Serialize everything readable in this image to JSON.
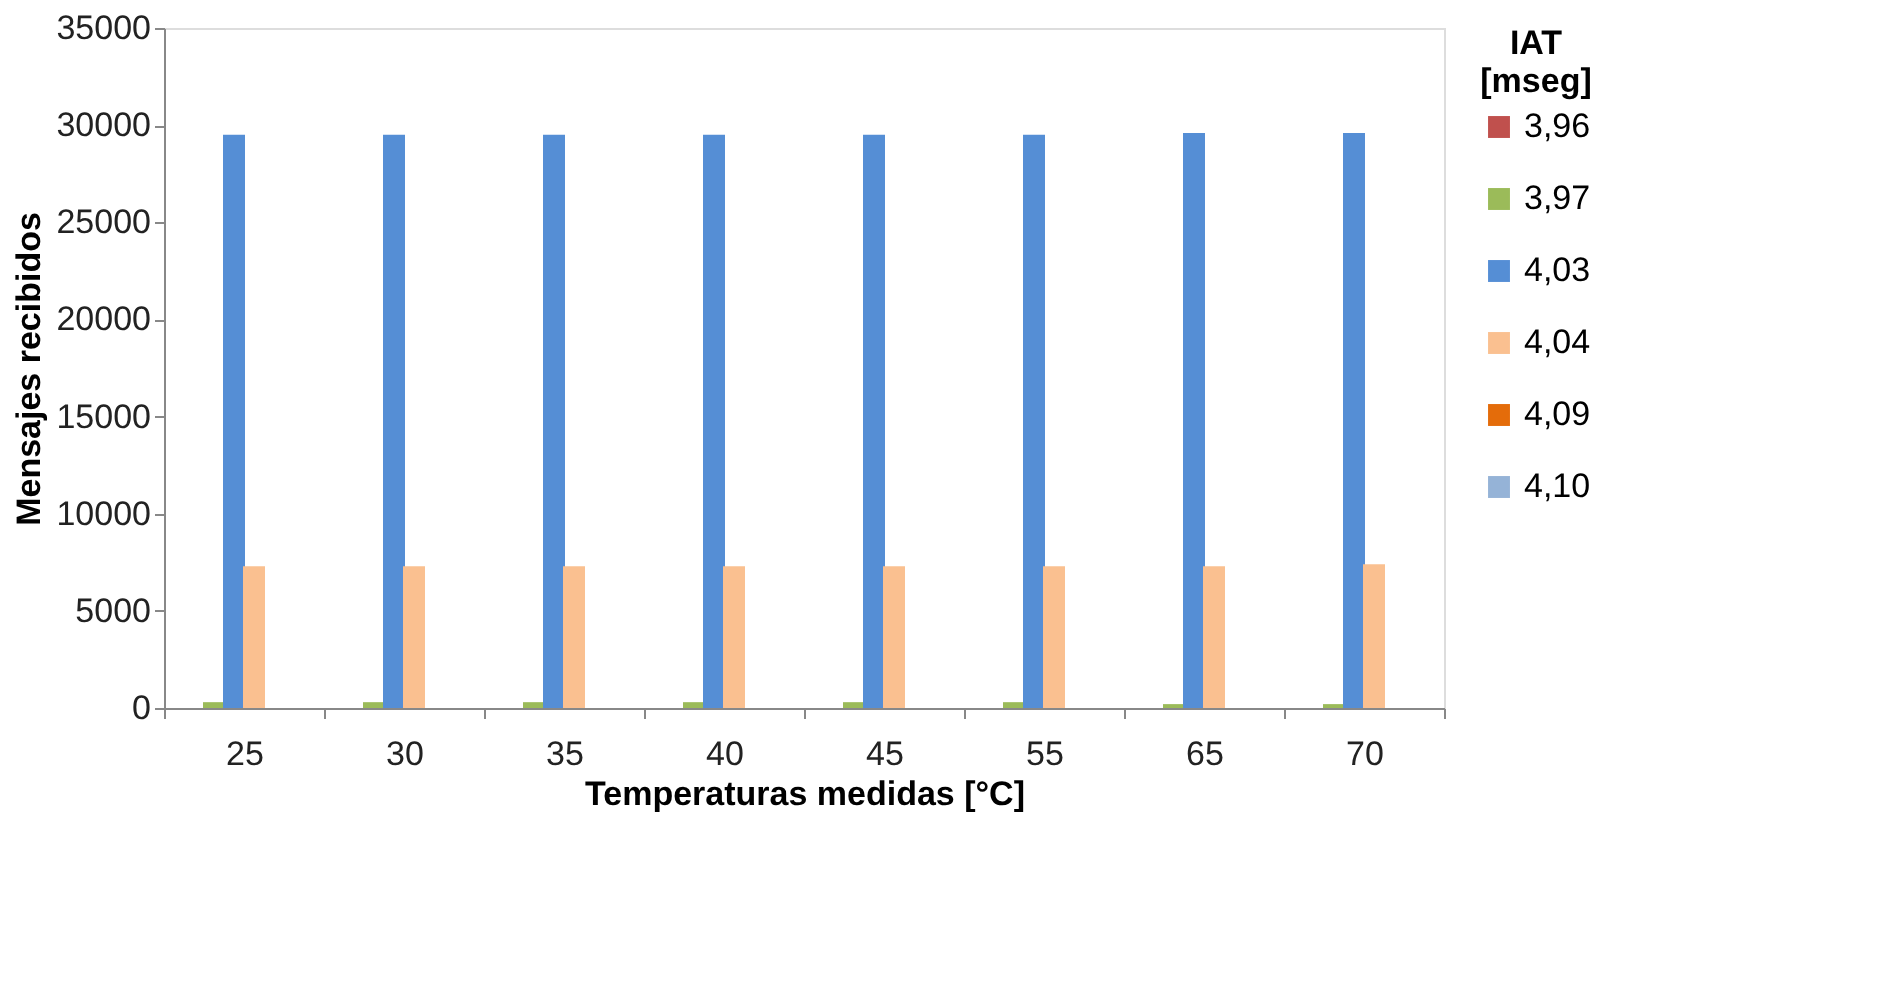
{
  "chart_data": {
    "type": "bar",
    "xlabel": "Temperaturas medidas [°C]",
    "ylabel": "Mensajes recibidos",
    "legend_title": "IAT [mseg]",
    "categories": [
      "25",
      "30",
      "35",
      "40",
      "45",
      "55",
      "65",
      "70"
    ],
    "series": [
      {
        "name": "3,96",
        "color": "#c0504d",
        "values": [
          0,
          0,
          0,
          0,
          0,
          0,
          0,
          0
        ]
      },
      {
        "name": "3,97",
        "color": "#9bbb59",
        "values": [
          300,
          300,
          300,
          300,
          300,
          300,
          200,
          200
        ]
      },
      {
        "name": "4,03",
        "color": "#558ed5",
        "values": [
          29500,
          29500,
          29500,
          29500,
          29500,
          29500,
          29600,
          29600
        ]
      },
      {
        "name": "4,04",
        "color": "#fac090",
        "values": [
          7300,
          7300,
          7300,
          7300,
          7300,
          7300,
          7300,
          7400
        ]
      },
      {
        "name": "4,09",
        "color": "#e46c0a",
        "values": [
          0,
          0,
          0,
          0,
          0,
          0,
          0,
          0
        ]
      },
      {
        "name": "4,10",
        "color": "#95b3d7",
        "values": [
          0,
          0,
          0,
          0,
          0,
          0,
          0,
          0
        ]
      }
    ],
    "ylim": [
      0,
      35000
    ],
    "yticks": [
      0,
      5000,
      10000,
      15000,
      20000,
      25000,
      30000,
      35000
    ],
    "grid": false,
    "legend": "right"
  }
}
